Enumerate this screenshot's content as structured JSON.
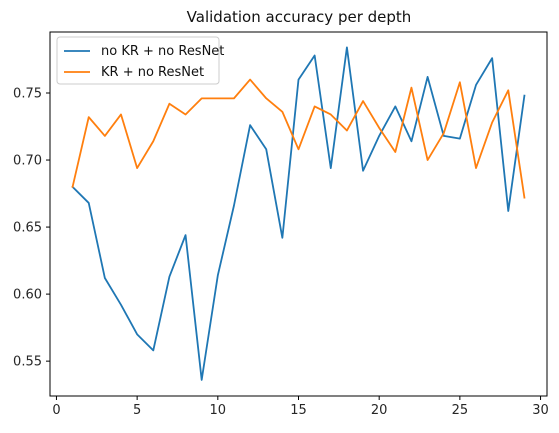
{
  "chart_data": {
    "type": "line",
    "title": "Validation accuracy per depth",
    "xlabel": "",
    "ylabel": "",
    "xlim": [
      -0.4,
      30.4
    ],
    "ylim": [
      0.524,
      0.7955
    ],
    "xticks": [
      0,
      5,
      10,
      15,
      20,
      25,
      30
    ],
    "yticks": [
      0.55,
      0.6,
      0.65,
      0.7,
      0.75
    ],
    "xtick_labels": [
      "0",
      "5",
      "10",
      "15",
      "20",
      "25",
      "30"
    ],
    "ytick_labels": [
      "0.55",
      "0.60",
      "0.65",
      "0.70",
      "0.75"
    ],
    "grid": false,
    "legend_position": "upper-left",
    "x": [
      1,
      2,
      3,
      4,
      5,
      6,
      7,
      8,
      9,
      10,
      11,
      12,
      13,
      14,
      15,
      16,
      17,
      18,
      19,
      20,
      21,
      22,
      23,
      24,
      25,
      26,
      27,
      28,
      29
    ],
    "series": [
      {
        "name": "no KR + no ResNet",
        "color": "#1f77b4",
        "values": [
          0.68,
          0.668,
          0.612,
          0.592,
          0.57,
          0.558,
          0.613,
          0.644,
          0.536,
          0.614,
          0.666,
          0.726,
          0.708,
          0.642,
          0.76,
          0.778,
          0.694,
          0.784,
          0.692,
          0.718,
          0.74,
          0.714,
          0.762,
          0.718,
          0.716,
          0.756,
          0.776,
          0.662,
          0.748
        ]
      },
      {
        "name": "KR + no ResNet",
        "color": "#ff7f0e",
        "values": [
          0.68,
          0.732,
          0.718,
          0.734,
          0.694,
          0.714,
          0.742,
          0.734,
          0.746,
          0.746,
          0.746,
          0.76,
          0.746,
          0.736,
          0.708,
          0.74,
          0.734,
          0.722,
          0.744,
          0.724,
          0.706,
          0.754,
          0.7,
          0.72,
          0.758,
          0.694,
          0.728,
          0.752,
          0.672
        ]
      }
    ]
  }
}
